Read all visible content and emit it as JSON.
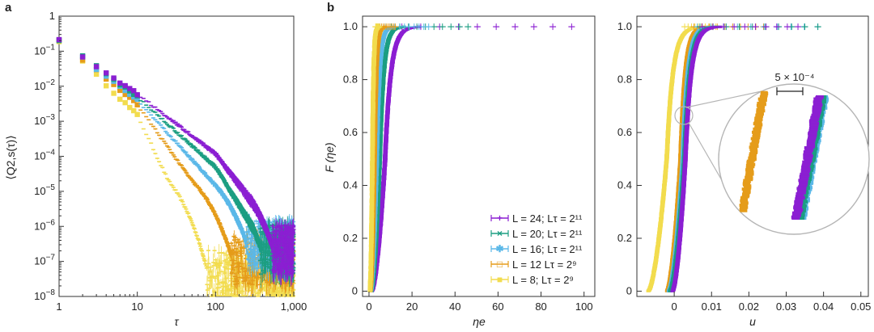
{
  "figure": {
    "colors": {
      "L24": "#8B1FD2",
      "L20": "#1C9E82",
      "L16": "#5BB8E8",
      "L12": "#E59C1A",
      "L8": "#F2DC4E",
      "frame": "#333333",
      "magnifier": "#b5b5b5"
    }
  },
  "chart_data": [
    {
      "panel": "a",
      "type": "scatter",
      "xscale": "log",
      "yscale": "log",
      "xlabel": "τ",
      "ylabel": "⟨Q2,s(τ)⟩",
      "xlim": [
        1,
        1000
      ],
      "ylim": [
        1e-08,
        1
      ],
      "xticks": [
        "1",
        "10",
        "100",
        "1,000"
      ],
      "yticks": [
        "1",
        "10^-1",
        "10^-2",
        "10^-3",
        "10^-4",
        "10^-5",
        "10^-6",
        "10^-7",
        "10^-8"
      ],
      "series": [
        {
          "name": "L = 24",
          "key": "L24",
          "decay_rate": 0.012,
          "noise_floor": 3e-07,
          "values_at_tau": [
            [
              1,
              0.2
            ],
            [
              2,
              0.07
            ],
            [
              10,
              0.006
            ],
            [
              100,
              0.00012
            ],
            [
              300,
              5e-06
            ]
          ]
        },
        {
          "name": "L = 20",
          "key": "L20",
          "decay_rate": 0.017,
          "noise_floor": 3e-07,
          "values_at_tau": [
            [
              1,
              0.2
            ],
            [
              2,
              0.07
            ],
            [
              10,
              0.005
            ],
            [
              100,
              5e-05
            ],
            [
              300,
              1e-06
            ]
          ]
        },
        {
          "name": "L = 16",
          "key": "L16",
          "decay_rate": 0.025,
          "noise_floor": 4e-07,
          "values_at_tau": [
            [
              1,
              0.2
            ],
            [
              2,
              0.065
            ],
            [
              10,
              0.004
            ],
            [
              100,
              1.5e-05
            ]
          ]
        },
        {
          "name": "L = 12",
          "key": "L12",
          "decay_rate": 0.045,
          "noise_floor": 1.5e-07,
          "values_at_tau": [
            [
              1,
              0.2
            ],
            [
              2,
              0.06
            ],
            [
              10,
              0.003
            ],
            [
              50,
              2e-05
            ]
          ]
        },
        {
          "name": "L = 8",
          "key": "L8",
          "decay_rate": 0.11,
          "noise_floor": 6e-08,
          "values_at_tau": [
            [
              1,
              0.2
            ],
            [
              2,
              0.05
            ],
            [
              10,
              0.0015
            ],
            [
              25,
              2e-05
            ]
          ]
        }
      ]
    },
    {
      "panel": "b-left",
      "type": "line",
      "title": "",
      "xlabel": "ηe",
      "ylabel": "F (ηe)",
      "xlim": [
        -3,
        105
      ],
      "ylim": [
        -0.02,
        1.04
      ],
      "xticks": [
        0,
        20,
        40,
        60,
        80,
        100
      ],
      "yticks": [
        0,
        0.2,
        0.4,
        0.6,
        0.8,
        1.0
      ],
      "legend_position": "bottom-right",
      "legend": [
        {
          "key": "L24",
          "label": "L = 24; Lτ = 2¹¹",
          "marker": "+"
        },
        {
          "key": "L20",
          "label": "L = 20; Lτ = 2¹¹",
          "marker": "×"
        },
        {
          "key": "L16",
          "label": "L = 16; Lτ = 2¹¹",
          "marker": "✱"
        },
        {
          "key": "L12",
          "label": "L = 12 Lτ = 2⁹",
          "marker": "□"
        },
        {
          "key": "L8",
          "label": "L = 8; Lτ = 2⁹",
          "marker": "■"
        }
      ],
      "series": [
        {
          "key": "L24",
          "start": 1.2,
          "median": 7.5,
          "spread": 2.6,
          "tail_max": 103
        },
        {
          "key": "L20",
          "start": 1.0,
          "median": 5.0,
          "spread": 1.8,
          "tail_max": 50
        },
        {
          "key": "L16",
          "start": 0.8,
          "median": 3.6,
          "spread": 1.3,
          "tail_max": 30
        },
        {
          "key": "L12",
          "start": 0.6,
          "median": 2.6,
          "spread": 0.8,
          "tail_max": 13
        },
        {
          "key": "L8",
          "start": 0.4,
          "median": 1.6,
          "spread": 0.5,
          "tail_max": 5
        }
      ]
    },
    {
      "panel": "b-right",
      "type": "line",
      "xlabel": "u",
      "ylabel": "",
      "xlim": [
        -0.01,
        0.052
      ],
      "ylim": [
        -0.02,
        1.04
      ],
      "xticks": [
        "0",
        "0.01",
        "0.02",
        "0.03",
        "0.04",
        "0.05"
      ],
      "yticks": [
        0,
        0.2,
        0.4,
        0.6,
        0.8,
        1.0
      ],
      "scale_bar_label": "5 × 10⁻⁴",
      "series": [
        {
          "key": "L8",
          "start": -0.007,
          "median": -0.002,
          "spread": 0.0016,
          "tail_max": 0.012
        },
        {
          "key": "L12",
          "start": -0.002,
          "median": 0.0017,
          "spread": 0.0012,
          "tail_max": 0.026
        },
        {
          "key": "L16",
          "start": -0.0015,
          "median": 0.0023,
          "spread": 0.0013,
          "tail_max": 0.042
        },
        {
          "key": "L20",
          "start": -0.0012,
          "median": 0.0027,
          "spread": 0.0014,
          "tail_max": 0.042
        },
        {
          "key": "L24",
          "start": -0.0005,
          "median": 0.003,
          "spread": 0.0015,
          "tail_max": 0.036
        }
      ]
    }
  ],
  "labels": {
    "panel_a": "a",
    "panel_b": "b",
    "tick_1000": "1,000",
    "legend_L24_prefix": "L",
    "minus_4": "−4"
  }
}
